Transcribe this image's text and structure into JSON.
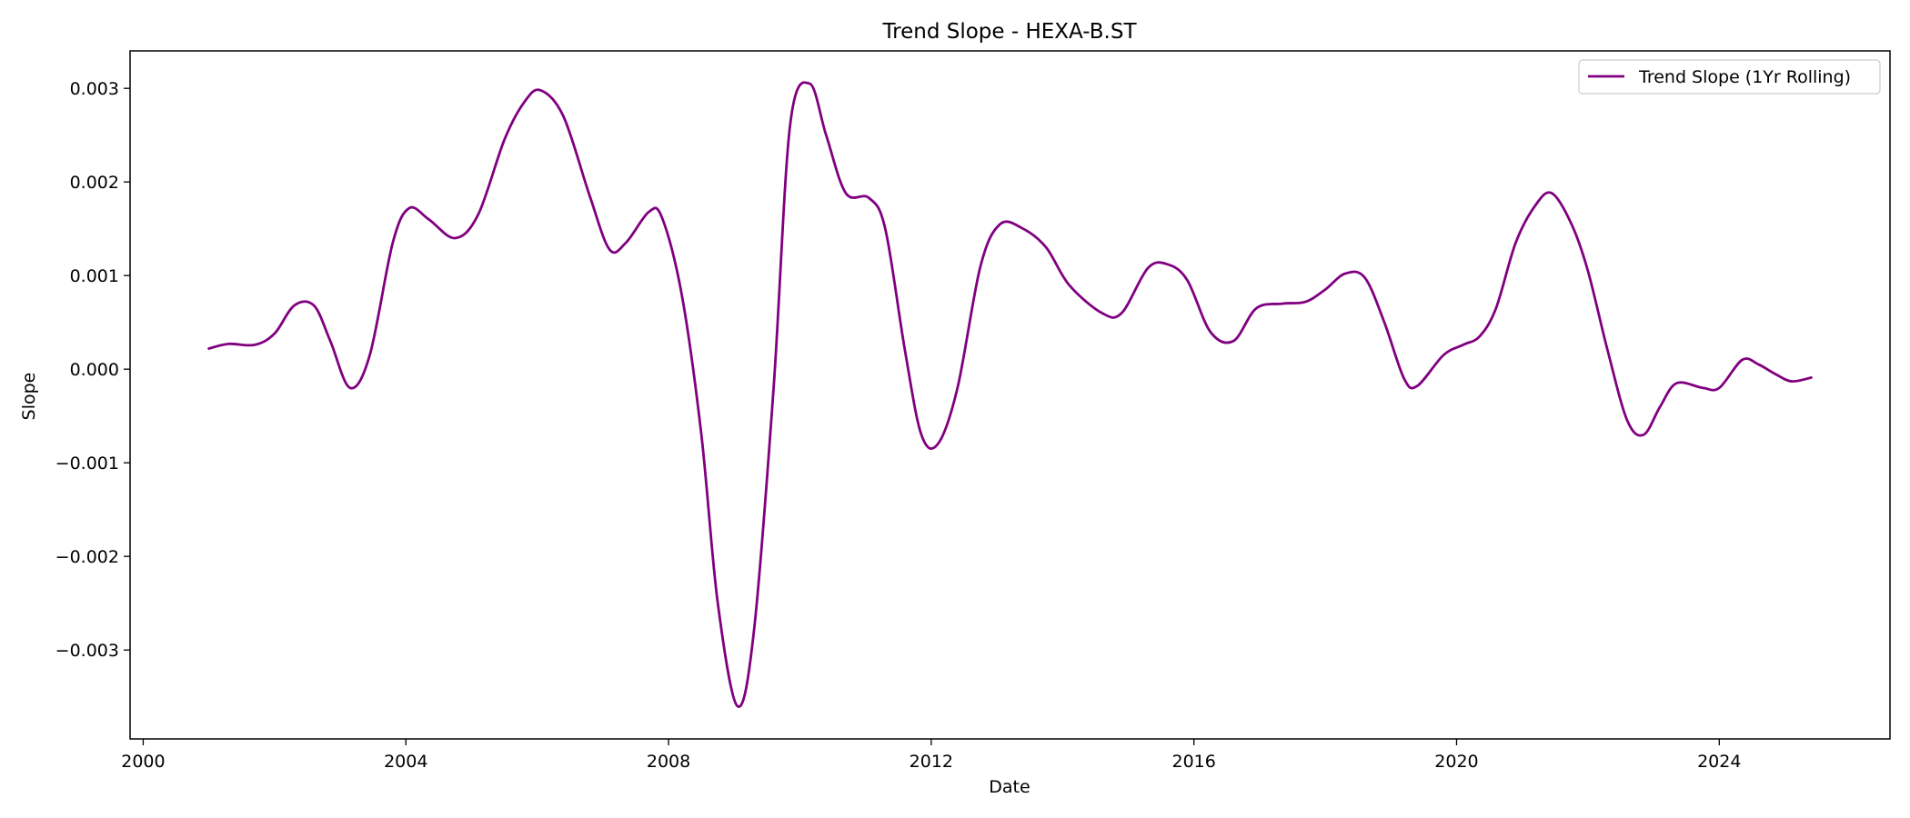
{
  "chart_data": {
    "type": "line",
    "title": "Trend Slope - HEXA-B.ST",
    "xlabel": "Date",
    "ylabel": "Slope",
    "xlim": [
      1999.8,
      2026.6
    ],
    "ylim": [
      -0.00395,
      0.0034
    ],
    "x_ticks": [
      2000,
      2004,
      2008,
      2012,
      2016,
      2020,
      2024
    ],
    "x_tick_labels": [
      "2000",
      "2004",
      "2008",
      "2012",
      "2016",
      "2020",
      "2024"
    ],
    "y_ticks": [
      -0.003,
      -0.002,
      -0.001,
      0.0,
      0.001,
      0.002,
      0.003
    ],
    "y_tick_labels": [
      "−0.003",
      "−0.002",
      "−0.001",
      "0.000",
      "0.001",
      "0.002",
      "0.003"
    ],
    "grid": false,
    "legend": {
      "position": "top-right"
    },
    "series": [
      {
        "name": "Trend Slope (1Yr Rolling)",
        "color": "#800080",
        "x": [
          2001.0,
          2001.3,
          2001.7,
          2002.0,
          2002.3,
          2002.6,
          2002.85,
          2003.15,
          2003.45,
          2003.8,
          2004.05,
          2004.35,
          2004.75,
          2005.1,
          2005.5,
          2005.8,
          2006.05,
          2006.4,
          2006.8,
          2007.1,
          2007.35,
          2007.7,
          2007.9,
          2008.2,
          2008.5,
          2008.75,
          2009.05,
          2009.3,
          2009.6,
          2009.85,
          2010.15,
          2010.4,
          2010.7,
          2011.05,
          2011.3,
          2011.6,
          2011.85,
          2012.1,
          2012.4,
          2012.75,
          2013.05,
          2013.4,
          2013.75,
          2014.1,
          2014.6,
          2014.9,
          2015.3,
          2015.6,
          2015.9,
          2016.25,
          2016.6,
          2016.95,
          2017.35,
          2017.7,
          2018.0,
          2018.3,
          2018.6,
          2018.9,
          2019.2,
          2019.4,
          2019.8,
          2020.1,
          2020.35,
          2020.6,
          2020.9,
          2021.2,
          2021.45,
          2021.75,
          2022.0,
          2022.3,
          2022.6,
          2022.85,
          2023.1,
          2023.35,
          2023.75,
          2024.0,
          2024.35,
          2024.6,
          2024.85,
          2025.1,
          2025.4
        ],
        "y": [
          0.00022,
          0.00027,
          0.00026,
          0.00038,
          0.00068,
          0.00068,
          0.0003,
          -0.0002,
          0.00015,
          0.00135,
          0.00172,
          0.0016,
          0.0014,
          0.00165,
          0.00245,
          0.00285,
          0.00298,
          0.0027,
          0.00185,
          0.00128,
          0.00135,
          0.00168,
          0.00162,
          0.0008,
          -0.0007,
          -0.0025,
          -0.0036,
          -0.0028,
          -0.0002,
          0.0026,
          0.00305,
          0.0025,
          0.00188,
          0.00183,
          0.0015,
          0.0002,
          -0.0007,
          -0.0008,
          -0.0002,
          0.0011,
          0.00155,
          0.0015,
          0.0013,
          0.0009,
          0.0006,
          0.0006,
          0.00108,
          0.00112,
          0.00095,
          0.0004,
          0.0003,
          0.00065,
          0.0007,
          0.00072,
          0.00085,
          0.00102,
          0.00098,
          0.0005,
          -0.0001,
          -0.00018,
          0.00015,
          0.00026,
          0.00035,
          0.00065,
          0.00135,
          0.00175,
          0.00188,
          0.00155,
          0.00105,
          0.0002,
          -0.00055,
          -0.0007,
          -0.0004,
          -0.00015,
          -0.0002,
          -0.0002,
          0.0001,
          5e-05,
          -5e-05,
          -0.00013,
          -9e-05
        ]
      }
    ]
  }
}
